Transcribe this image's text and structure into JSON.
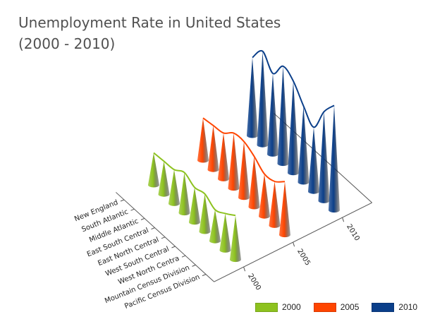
{
  "chart_data": {
    "type": "3d-cone",
    "title": "Unemployment Rate in United States",
    "subtitle": "(2000 - 2010)",
    "categories": [
      "New England",
      "South Atlantic",
      "Middle Atlantic",
      "East South Central",
      "East North Central",
      "West South Central",
      "West North Centra",
      "Mountain Census Division",
      "Pacific Census Division"
    ],
    "series": [
      {
        "name": "2000",
        "color": "#8dc21f",
        "values": [
          3.5,
          3.6,
          3.7,
          4.4,
          3.8,
          4.1,
          3.4,
          4.0,
          4.8
        ]
      },
      {
        "name": "2005",
        "color": "#ff4500",
        "values": [
          4.6,
          4.8,
          5.0,
          6.0,
          6.1,
          5.5,
          4.6,
          4.8,
          5.8
        ]
      },
      {
        "name": "2010",
        "color": "#0b3f8a",
        "values": [
          8.5,
          10.2,
          8.8,
          10.6,
          10.0,
          8.3,
          7.0,
          9.7,
          11.4
        ]
      }
    ],
    "ylim": [
      0,
      12
    ]
  }
}
